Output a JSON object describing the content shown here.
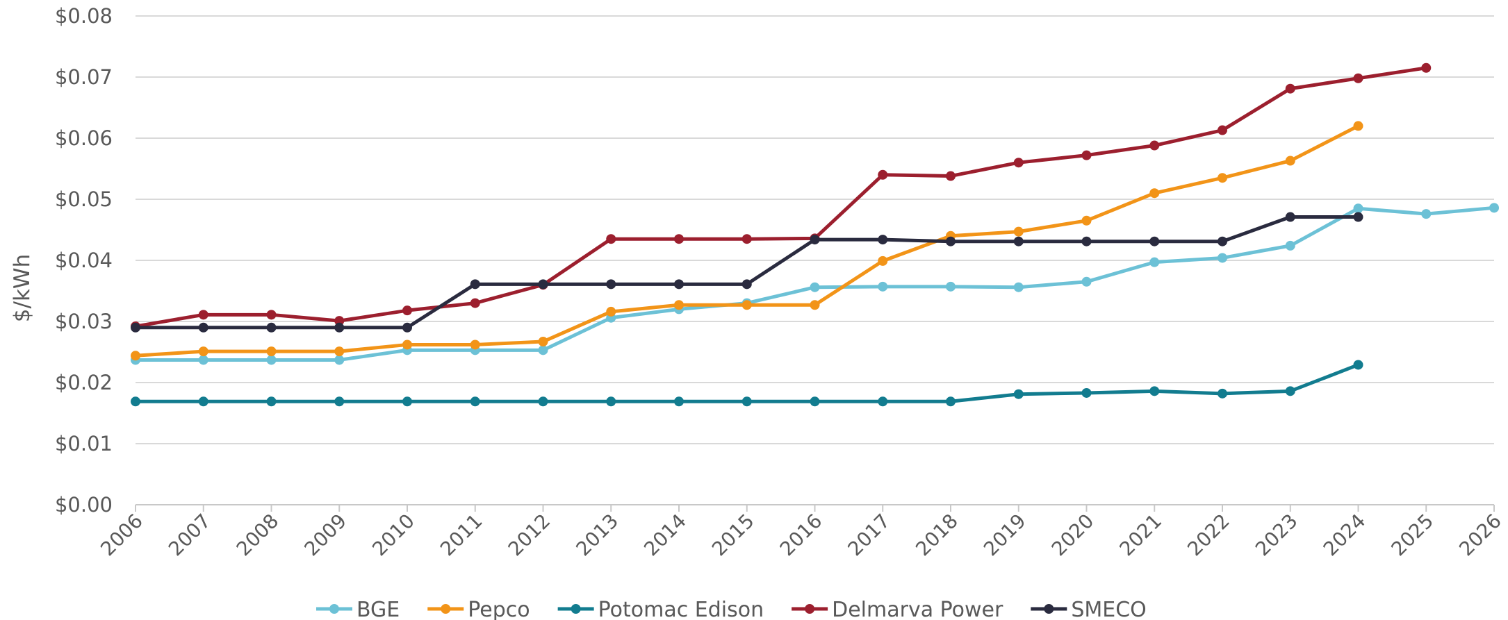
{
  "chart_data": {
    "type": "line",
    "title": "",
    "xlabel": "",
    "ylabel": "$/kWh",
    "ylim": [
      0,
      0.08
    ],
    "yticks": [
      "$0.00",
      "$0.01",
      "$0.02",
      "$0.03",
      "$0.04",
      "$0.05",
      "$0.06",
      "$0.07",
      "$0.08"
    ],
    "ytick_values": [
      0,
      0.01,
      0.02,
      0.03,
      0.04,
      0.05,
      0.06,
      0.07,
      0.08
    ],
    "categories": [
      "2006",
      "2007",
      "2008",
      "2009",
      "2010",
      "2011",
      "2012",
      "2013",
      "2014",
      "2015",
      "2016",
      "2017",
      "2018",
      "2019",
      "2020",
      "2021",
      "2022",
      "2023",
      "2024",
      "2025",
      "2026"
    ],
    "grid": true,
    "legend_position": "bottom",
    "series": [
      {
        "name": "BGE",
        "color": "#6cc1d6",
        "values": [
          0.0237,
          0.0237,
          0.0237,
          0.0237,
          0.0253,
          0.0253,
          0.0253,
          0.0306,
          0.032,
          0.033,
          0.0356,
          0.0357,
          0.0357,
          0.0356,
          0.0365,
          0.0397,
          0.0404,
          0.0424,
          0.0485,
          0.0476,
          0.0486
        ]
      },
      {
        "name": "Pepco",
        "color": "#f29418",
        "values": [
          0.0244,
          0.0251,
          0.0251,
          0.0251,
          0.0262,
          0.0262,
          0.0267,
          0.0316,
          0.0327,
          0.0327,
          0.0327,
          0.0399,
          0.044,
          0.0447,
          0.0465,
          0.051,
          0.0535,
          0.0563,
          0.062,
          null,
          null
        ]
      },
      {
        "name": "Potomac Edison",
        "color": "#127c8f",
        "values": [
          0.0169,
          0.0169,
          0.0169,
          0.0169,
          0.0169,
          0.0169,
          0.0169,
          0.0169,
          0.0169,
          0.0169,
          0.0169,
          0.0169,
          0.0169,
          0.0181,
          0.0183,
          0.0186,
          0.0182,
          0.0186,
          0.0229,
          null,
          null
        ]
      },
      {
        "name": "Delmarva Power",
        "color": "#9c1f2e",
        "values": [
          0.0292,
          0.0311,
          0.0311,
          0.0301,
          0.0318,
          0.033,
          0.036,
          0.0435,
          0.0435,
          0.0435,
          0.0436,
          0.054,
          0.0538,
          0.056,
          0.0572,
          0.0588,
          0.0613,
          0.0681,
          0.0698,
          0.0715,
          null
        ]
      },
      {
        "name": "SMECO",
        "color": "#2a2b3f",
        "values": [
          0.029,
          0.029,
          0.029,
          0.029,
          0.029,
          0.0361,
          0.0361,
          0.0361,
          0.0361,
          0.0361,
          0.0434,
          0.0434,
          0.0431,
          0.0431,
          0.0431,
          0.0431,
          0.0431,
          0.0471,
          0.0471,
          null,
          null
        ]
      }
    ]
  }
}
